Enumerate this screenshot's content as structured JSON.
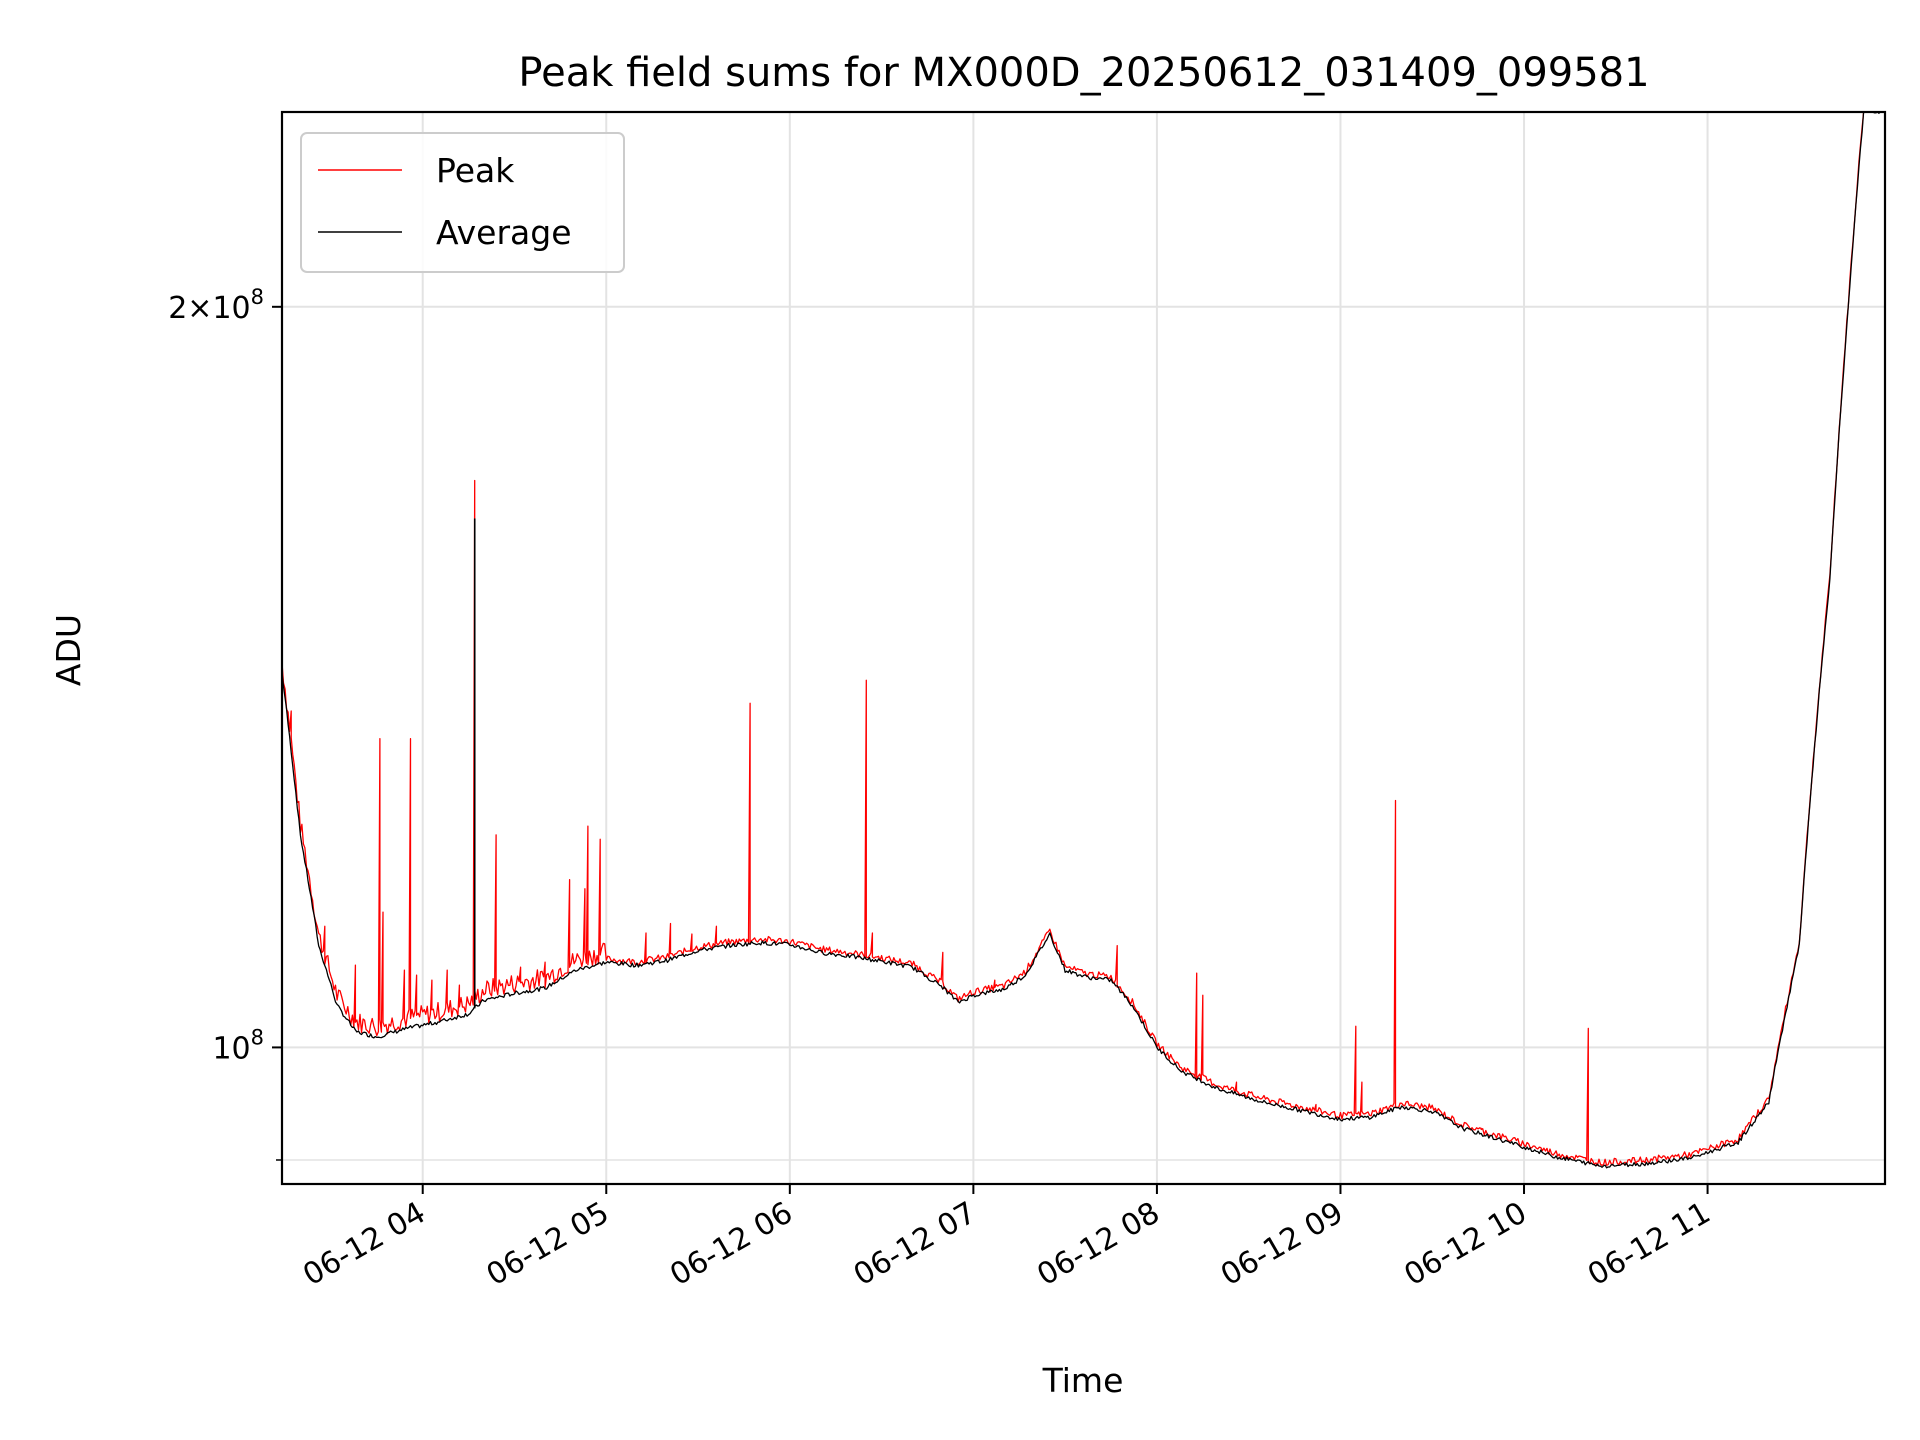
{
  "chart_data": {
    "type": "line",
    "title": "Peak field sums for MX000D_20250612_031409_099581",
    "xlabel": "Time",
    "ylabel": "ADU",
    "y_scale": "log",
    "grid": true,
    "legend_position": "upper-left",
    "xlim": [
      "2025-06-12 03:14",
      "2025-06-12 11:58"
    ],
    "ylim": [
      88000000,
      240000000
    ],
    "x_ticks": [
      {
        "time": "2025-06-12 04:00",
        "label": "06-12 04"
      },
      {
        "time": "2025-06-12 05:00",
        "label": "06-12 05"
      },
      {
        "time": "2025-06-12 06:00",
        "label": "06-12 06"
      },
      {
        "time": "2025-06-12 07:00",
        "label": "06-12 07"
      },
      {
        "time": "2025-06-12 08:00",
        "label": "06-12 08"
      },
      {
        "time": "2025-06-12 09:00",
        "label": "06-12 09"
      },
      {
        "time": "2025-06-12 10:00",
        "label": "06-12 10"
      },
      {
        "time": "2025-06-12 11:00",
        "label": "06-12 11"
      }
    ],
    "y_ticks": [
      {
        "value": 100000000,
        "base": "10",
        "exp": "8",
        "prefix": ""
      },
      {
        "value": 200000000,
        "base": "10",
        "exp": "8",
        "prefix": "2×"
      }
    ],
    "y_minor_ticks": [
      90000000
    ],
    "series": [
      {
        "name": "Average",
        "color": "#000000",
        "points": [
          [
            "2025-06-12 03:14",
            142000000
          ],
          [
            "2025-06-12 03:20",
            122000000
          ],
          [
            "2025-06-12 03:26",
            110000000
          ],
          [
            "2025-06-12 03:32",
            104000000
          ],
          [
            "2025-06-12 03:38",
            101500000
          ],
          [
            "2025-06-12 03:45",
            101000000
          ],
          [
            "2025-06-12 03:55",
            101800000
          ],
          [
            "2025-06-12 04:05",
            102400000
          ],
          [
            "2025-06-12 04:15",
            103200000
          ],
          [
            "2025-06-12 04:20",
            104500000
          ],
          [
            "2025-06-12 04:30",
            105200000
          ],
          [
            "2025-06-12 04:40",
            105700000
          ],
          [
            "2025-06-12 04:50",
            107500000
          ],
          [
            "2025-06-12 05:00",
            108300000
          ],
          [
            "2025-06-12 05:10",
            108000000
          ],
          [
            "2025-06-12 05:20",
            108500000
          ],
          [
            "2025-06-12 05:30",
            109500000
          ],
          [
            "2025-06-12 05:40",
            110000000
          ],
          [
            "2025-06-12 05:50",
            110300000
          ],
          [
            "2025-06-12 06:00",
            110100000
          ],
          [
            "2025-06-12 06:10",
            109300000
          ],
          [
            "2025-06-12 06:20",
            108900000
          ],
          [
            "2025-06-12 06:30",
            108400000
          ],
          [
            "2025-06-12 06:40",
            107800000
          ],
          [
            "2025-06-12 06:50",
            105800000
          ],
          [
            "2025-06-12 06:55",
            104300000
          ],
          [
            "2025-06-12 07:00",
            105000000
          ],
          [
            "2025-06-12 07:10",
            105600000
          ],
          [
            "2025-06-12 07:17",
            107000000
          ],
          [
            "2025-06-12 07:25",
            111200000
          ],
          [
            "2025-06-12 07:30",
            107500000
          ],
          [
            "2025-06-12 07:37",
            106800000
          ],
          [
            "2025-06-12 07:45",
            106500000
          ],
          [
            "2025-06-12 07:52",
            104000000
          ],
          [
            "2025-06-12 08:00",
            100000000
          ],
          [
            "2025-06-12 08:08",
            97800000
          ],
          [
            "2025-06-12 08:20",
            96200000
          ],
          [
            "2025-06-12 08:35",
            95000000
          ],
          [
            "2025-06-12 08:50",
            94100000
          ],
          [
            "2025-06-12 09:00",
            93500000
          ],
          [
            "2025-06-12 09:10",
            93700000
          ],
          [
            "2025-06-12 09:20",
            94600000
          ],
          [
            "2025-06-12 09:30",
            94200000
          ],
          [
            "2025-06-12 09:40",
            92700000
          ],
          [
            "2025-06-12 09:55",
            91500000
          ],
          [
            "2025-06-12 10:10",
            90300000
          ],
          [
            "2025-06-12 10:25",
            89500000
          ],
          [
            "2025-06-12 10:40",
            89700000
          ],
          [
            "2025-06-12 10:55",
            90200000
          ],
          [
            "2025-06-12 11:10",
            91500000
          ],
          [
            "2025-06-12 11:20",
            95000000
          ],
          [
            "2025-06-12 11:30",
            110000000
          ],
          [
            "2025-06-12 11:40",
            155000000
          ],
          [
            "2025-06-12 11:46",
            200000000
          ],
          [
            "2025-06-12 11:51",
            240000000
          ]
        ]
      },
      {
        "name": "Peak",
        "color": "#ff0000",
        "follows": "Average",
        "spikes": [
          [
            "2025-06-12 03:17",
            137000000
          ],
          [
            "2025-06-12 03:28",
            112000000
          ],
          [
            "2025-06-12 03:38",
            108000000
          ],
          [
            "2025-06-12 03:47",
            113500000
          ],
          [
            "2025-06-12 03:54",
            107500000
          ],
          [
            "2025-06-12 03:58",
            107000000
          ],
          [
            "2025-06-12 04:03",
            106500000
          ],
          [
            "2025-06-12 04:08",
            107500000
          ],
          [
            "2025-06-12 04:12",
            106000000
          ],
          [
            "2025-06-12 04:24",
            122000000
          ],
          [
            "2025-06-12 04:32",
            107800000
          ],
          [
            "2025-06-12 04:40",
            108300000
          ],
          [
            "2025-06-12 04:48",
            117000000
          ],
          [
            "2025-06-12 04:53",
            116000000
          ],
          [
            "2025-06-12 05:13",
            111300000
          ],
          [
            "2025-06-12 05:21",
            112300000
          ],
          [
            "2025-06-12 05:28",
            111200000
          ],
          [
            "2025-06-12 05:36",
            112000000
          ],
          [
            "2025-06-12 06:27",
            111300000
          ],
          [
            "2025-06-12 06:50",
            109300000
          ],
          [
            "2025-06-12 07:07",
            106500000
          ],
          [
            "2025-06-12 07:47",
            110000000
          ],
          [
            "2025-06-12 08:13",
            107200000
          ],
          [
            "2025-06-12 08:26",
            96800000
          ],
          [
            "2025-06-12 08:52",
            94800000
          ],
          [
            "2025-06-12 09:07",
            96800000
          ],
          [
            "2025-06-12 09:46",
            92700000
          ]
        ],
        "tall_spikes": [
          [
            "2025-06-12 03:46",
            133500000
          ],
          [
            "2025-06-12 03:56",
            133500000
          ],
          [
            "2025-06-12 04:17",
            170000000
          ],
          [
            "2025-06-12 04:54",
            123000000
          ],
          [
            "2025-06-12 04:58",
            121500000
          ],
          [
            "2025-06-12 05:47",
            138000000
          ],
          [
            "2025-06-12 06:25",
            141000000
          ],
          [
            "2025-06-12 08:15",
            105000000
          ],
          [
            "2025-06-12 09:05",
            102000000
          ],
          [
            "2025-06-12 09:18",
            126000000
          ],
          [
            "2025-06-12 10:21",
            101800000
          ]
        ]
      }
    ]
  }
}
